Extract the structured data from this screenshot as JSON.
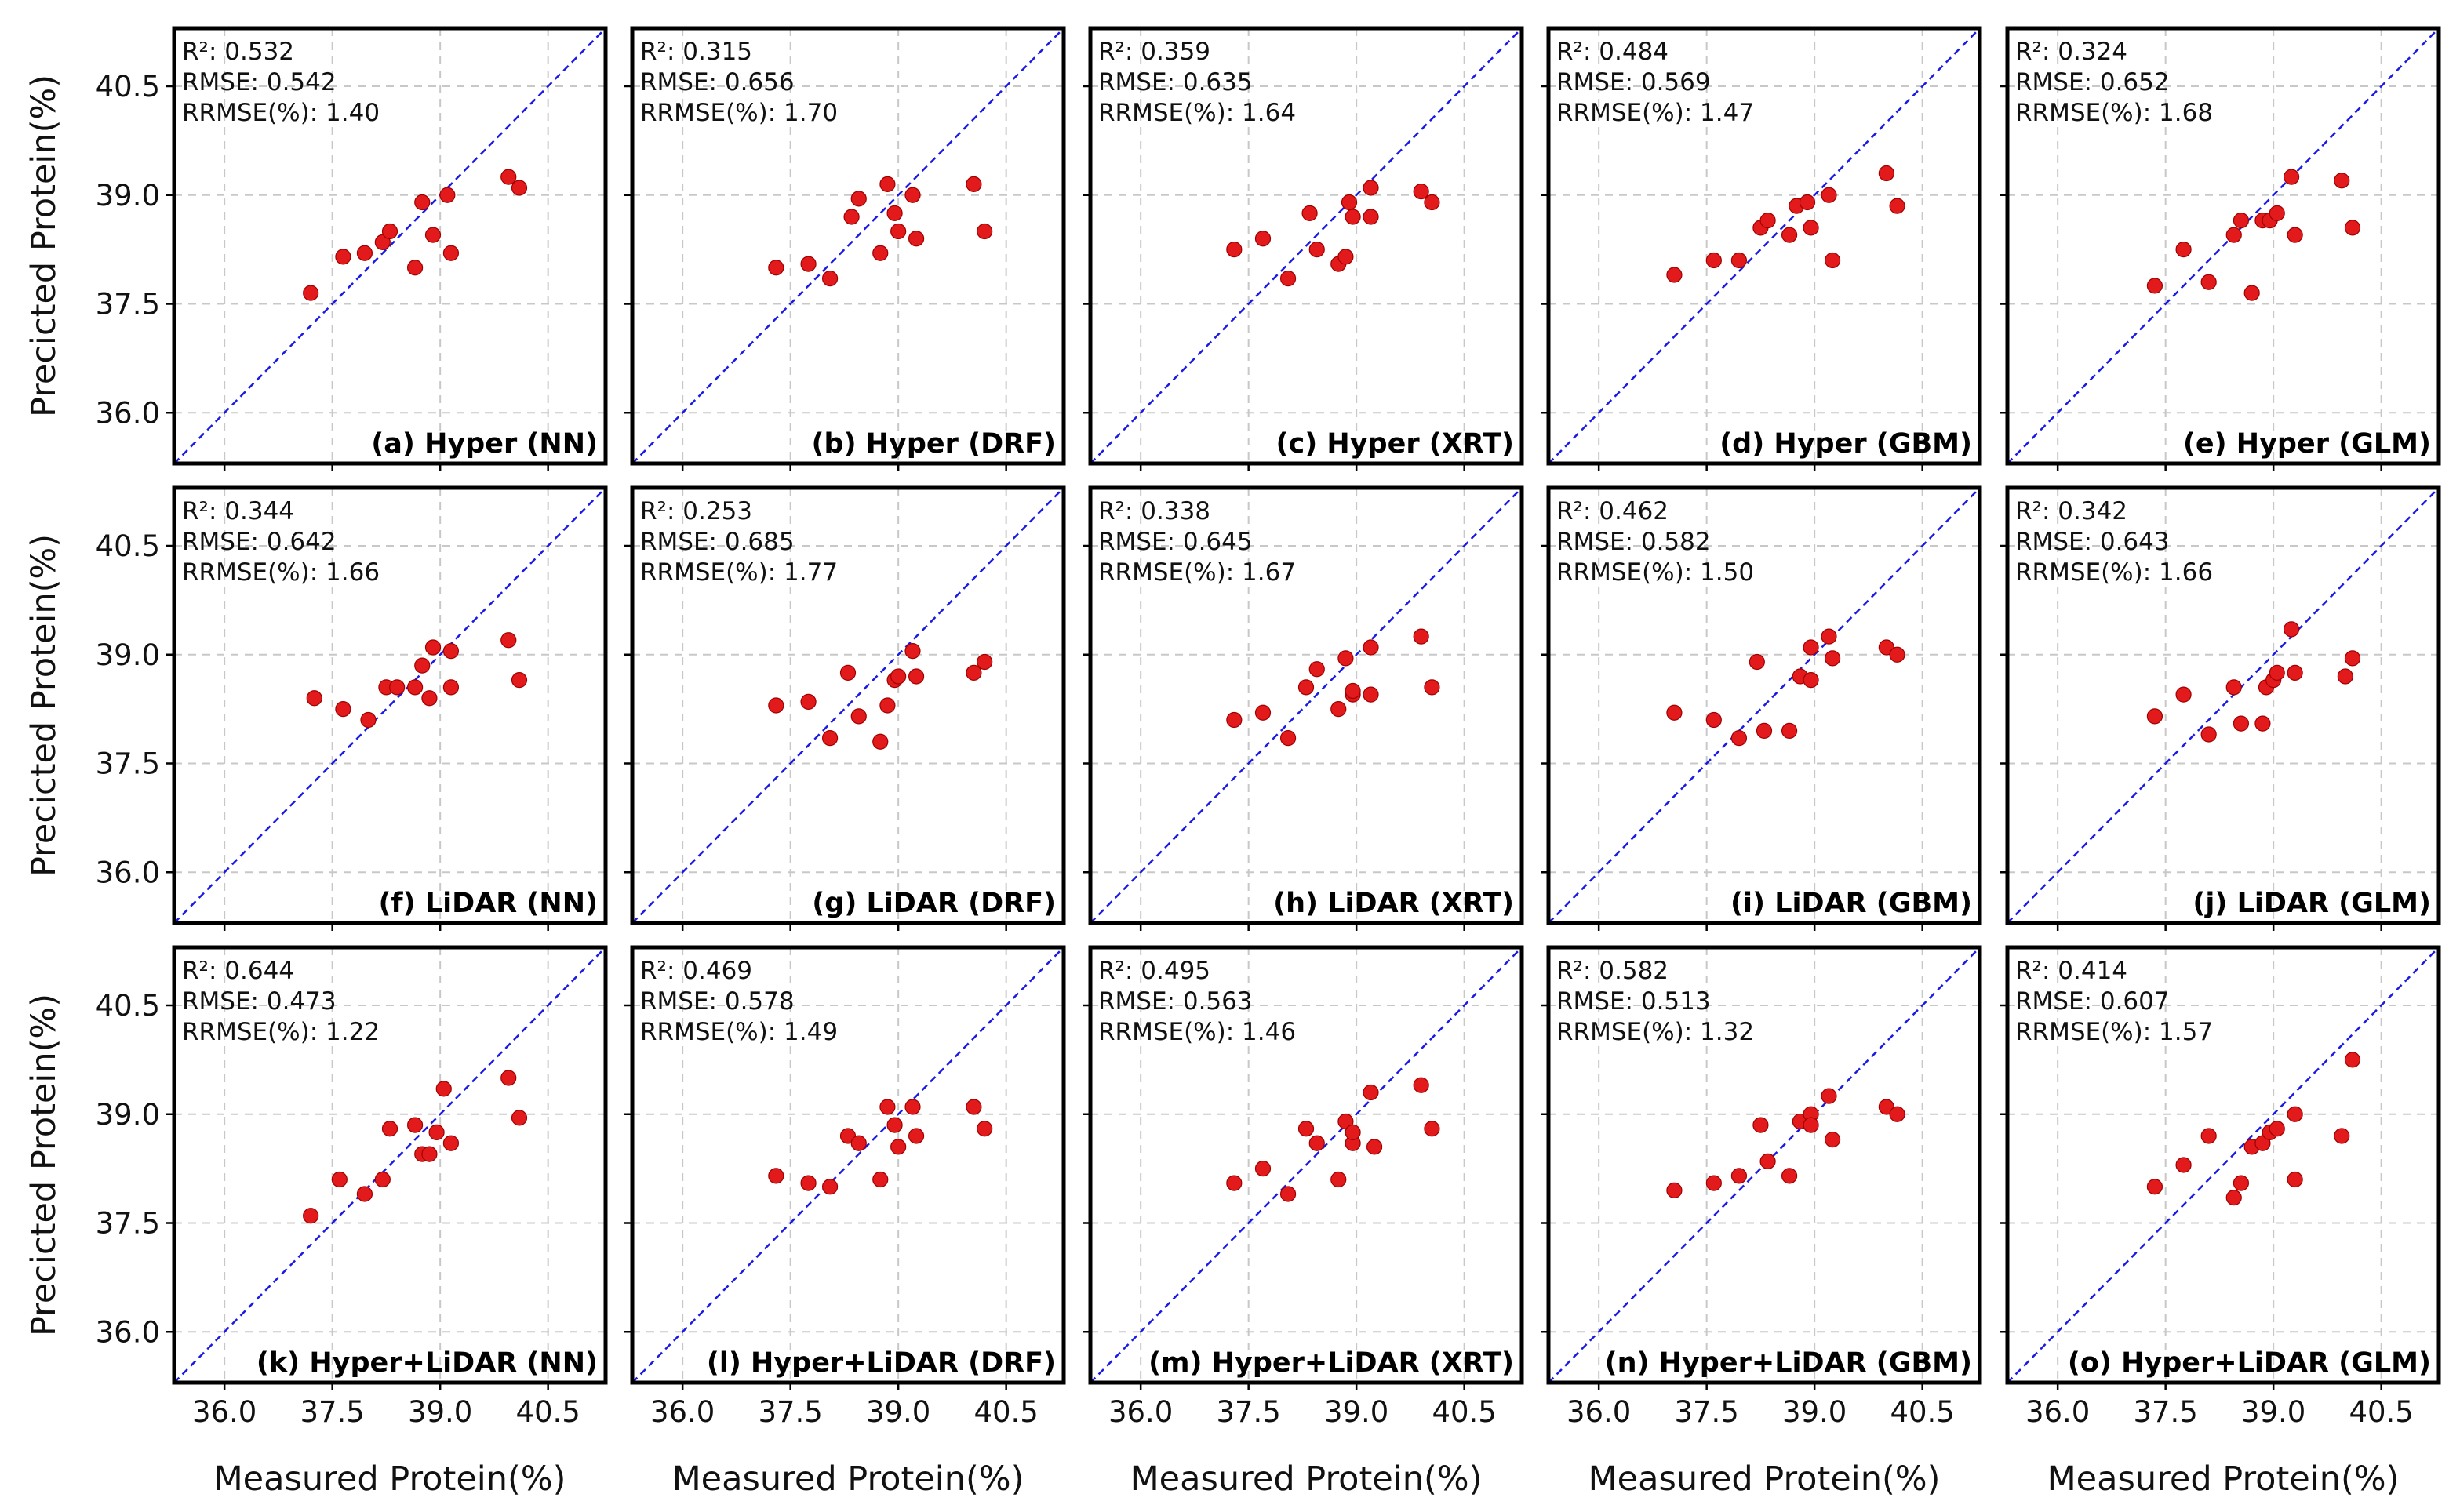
{
  "figure": {
    "xlabel": "Measured Protein(%)",
    "ylabel": "Precicted Protein(%)",
    "x_ticks": [
      "36.0",
      "37.5",
      "39.0",
      "40.5"
    ],
    "y_ticks": [
      "36.0",
      "37.5",
      "39.0",
      "40.5"
    ]
  },
  "style": {
    "point_color": "#e31a1c",
    "identity_line_color": "#1a1ae6"
  },
  "chart_data": [
    {
      "type": "scatter",
      "label": "(a) Hyper (NN)",
      "r2": "R²: 0.532",
      "rmse": "RMSE: 0.542",
      "rrmse": "RRMSE(%): 1.40",
      "xlim": [
        35.3,
        41.3
      ],
      "ylim": [
        35.3,
        41.3
      ],
      "grid": true,
      "identity_line": true,
      "points": [
        [
          37.2,
          37.65
        ],
        [
          37.65,
          38.15
        ],
        [
          37.95,
          38.2
        ],
        [
          38.2,
          38.35
        ],
        [
          38.3,
          38.5
        ],
        [
          38.65,
          38.0
        ],
        [
          38.75,
          38.9
        ],
        [
          38.9,
          38.45
        ],
        [
          39.1,
          39.0
        ],
        [
          39.15,
          38.2
        ],
        [
          39.95,
          39.25
        ],
        [
          40.1,
          39.1
        ]
      ]
    },
    {
      "type": "scatter",
      "label": "(b) Hyper (DRF)",
      "r2": "R²: 0.315",
      "rmse": "RMSE: 0.656",
      "rrmse": "RRMSE(%): 1.70",
      "xlim": [
        35.3,
        41.3
      ],
      "ylim": [
        35.3,
        41.3
      ],
      "grid": true,
      "identity_line": true,
      "points": [
        [
          37.3,
          38.0
        ],
        [
          37.75,
          38.05
        ],
        [
          38.05,
          37.85
        ],
        [
          38.35,
          38.7
        ],
        [
          38.45,
          38.95
        ],
        [
          38.75,
          38.2
        ],
        [
          38.85,
          39.15
        ],
        [
          38.95,
          38.75
        ],
        [
          39.0,
          38.5
        ],
        [
          39.2,
          39.0
        ],
        [
          39.25,
          38.4
        ],
        [
          40.05,
          39.15
        ],
        [
          40.2,
          38.5
        ]
      ]
    },
    {
      "type": "scatter",
      "label": "(c) Hyper (XRT)",
      "r2": "R²: 0.359",
      "rmse": "RMSE: 0.635",
      "rrmse": "RRMSE(%): 1.64",
      "xlim": [
        35.3,
        41.3
      ],
      "ylim": [
        35.3,
        41.3
      ],
      "grid": true,
      "identity_line": true,
      "points": [
        [
          37.3,
          38.25
        ],
        [
          37.7,
          38.4
        ],
        [
          38.05,
          37.85
        ],
        [
          38.35,
          38.75
        ],
        [
          38.45,
          38.25
        ],
        [
          38.75,
          38.05
        ],
        [
          38.85,
          38.15
        ],
        [
          38.9,
          38.9
        ],
        [
          38.95,
          38.7
        ],
        [
          39.2,
          38.7
        ],
        [
          39.2,
          39.1
        ],
        [
          39.9,
          39.05
        ],
        [
          40.05,
          38.9
        ]
      ]
    },
    {
      "type": "scatter",
      "label": "(d) Hyper (GBM)",
      "r2": "R²: 0.484",
      "rmse": "RMSE: 0.569",
      "rrmse": "RRMSE(%): 1.47",
      "xlim": [
        35.3,
        41.3
      ],
      "ylim": [
        35.3,
        41.3
      ],
      "grid": true,
      "identity_line": true,
      "points": [
        [
          37.05,
          37.9
        ],
        [
          37.6,
          38.1
        ],
        [
          37.95,
          38.1
        ],
        [
          38.25,
          38.55
        ],
        [
          38.35,
          38.65
        ],
        [
          38.65,
          38.45
        ],
        [
          38.75,
          38.85
        ],
        [
          38.9,
          38.9
        ],
        [
          38.95,
          38.55
        ],
        [
          39.2,
          39.0
        ],
        [
          39.25,
          38.1
        ],
        [
          40.0,
          39.3
        ],
        [
          40.15,
          38.85
        ]
      ]
    },
    {
      "type": "scatter",
      "label": "(e) Hyper (GLM)",
      "r2": "R²: 0.324",
      "rmse": "RMSE: 0.652",
      "rrmse": "RRMSE(%): 1.68",
      "xlim": [
        35.3,
        41.3
      ],
      "ylim": [
        35.3,
        41.3
      ],
      "grid": true,
      "identity_line": true,
      "points": [
        [
          37.35,
          37.75
        ],
        [
          37.75,
          38.25
        ],
        [
          38.1,
          37.8
        ],
        [
          38.45,
          38.45
        ],
        [
          38.55,
          38.65
        ],
        [
          38.7,
          37.65
        ],
        [
          38.85,
          38.65
        ],
        [
          38.95,
          38.65
        ],
        [
          39.05,
          38.75
        ],
        [
          39.25,
          39.25
        ],
        [
          39.3,
          38.45
        ],
        [
          39.95,
          39.2
        ],
        [
          40.1,
          38.55
        ]
      ]
    },
    {
      "type": "scatter",
      "label": "(f) LiDAR (NN)",
      "r2": "R²: 0.344",
      "rmse": "RMSE: 0.642",
      "rrmse": "RRMSE(%): 1.66",
      "xlim": [
        35.3,
        41.3
      ],
      "ylim": [
        35.3,
        41.3
      ],
      "grid": true,
      "identity_line": true,
      "points": [
        [
          37.25,
          38.4
        ],
        [
          37.65,
          38.25
        ],
        [
          38.0,
          38.1
        ],
        [
          38.25,
          38.55
        ],
        [
          38.4,
          38.55
        ],
        [
          38.65,
          38.55
        ],
        [
          38.75,
          38.85
        ],
        [
          38.85,
          38.4
        ],
        [
          38.9,
          39.1
        ],
        [
          39.15,
          39.05
        ],
        [
          39.15,
          38.55
        ],
        [
          39.95,
          39.2
        ],
        [
          40.1,
          38.65
        ]
      ]
    },
    {
      "type": "scatter",
      "label": "(g) LiDAR (DRF)",
      "r2": "R²: 0.253",
      "rmse": "RMSE: 0.685",
      "rrmse": "RRMSE(%): 1.77",
      "xlim": [
        35.3,
        41.3
      ],
      "ylim": [
        35.3,
        41.3
      ],
      "grid": true,
      "identity_line": true,
      "points": [
        [
          37.3,
          38.3
        ],
        [
          37.75,
          38.35
        ],
        [
          38.05,
          37.85
        ],
        [
          38.3,
          38.75
        ],
        [
          38.45,
          38.15
        ],
        [
          38.75,
          37.8
        ],
        [
          38.85,
          38.3
        ],
        [
          38.95,
          38.65
        ],
        [
          39.0,
          38.7
        ],
        [
          39.2,
          39.05
        ],
        [
          39.25,
          38.7
        ],
        [
          40.05,
          38.75
        ],
        [
          40.2,
          38.9
        ]
      ]
    },
    {
      "type": "scatter",
      "label": "(h) LiDAR (XRT)",
      "r2": "R²: 0.338",
      "rmse": "RMSE: 0.645",
      "rrmse": "RRMSE(%): 1.67",
      "xlim": [
        35.3,
        41.3
      ],
      "ylim": [
        35.3,
        41.3
      ],
      "grid": true,
      "identity_line": true,
      "points": [
        [
          37.3,
          38.1
        ],
        [
          37.7,
          38.2
        ],
        [
          38.05,
          37.85
        ],
        [
          38.3,
          38.55
        ],
        [
          38.45,
          38.8
        ],
        [
          38.75,
          38.25
        ],
        [
          38.85,
          38.95
        ],
        [
          38.95,
          38.45
        ],
        [
          38.95,
          38.5
        ],
        [
          39.2,
          39.1
        ],
        [
          39.2,
          38.45
        ],
        [
          39.9,
          39.25
        ],
        [
          40.05,
          38.55
        ]
      ]
    },
    {
      "type": "scatter",
      "label": "(i) LiDAR (GBM)",
      "r2": "R²: 0.462",
      "rmse": "RMSE: 0.582",
      "rrmse": "RRMSE(%): 1.50",
      "xlim": [
        35.3,
        41.3
      ],
      "ylim": [
        35.3,
        41.3
      ],
      "grid": true,
      "identity_line": true,
      "points": [
        [
          37.05,
          38.2
        ],
        [
          37.6,
          38.1
        ],
        [
          37.95,
          37.85
        ],
        [
          38.2,
          38.9
        ],
        [
          38.3,
          37.95
        ],
        [
          38.65,
          37.95
        ],
        [
          38.8,
          38.7
        ],
        [
          38.95,
          39.1
        ],
        [
          38.95,
          38.65
        ],
        [
          39.2,
          39.25
        ],
        [
          39.25,
          38.95
        ],
        [
          40.0,
          39.1
        ],
        [
          40.15,
          39.0
        ]
      ]
    },
    {
      "type": "scatter",
      "label": "(j) LiDAR (GLM)",
      "r2": "R²: 0.342",
      "rmse": "RMSE: 0.643",
      "rrmse": "RRMSE(%): 1.66",
      "xlim": [
        35.3,
        41.3
      ],
      "ylim": [
        35.3,
        41.3
      ],
      "grid": true,
      "identity_line": true,
      "points": [
        [
          37.35,
          38.15
        ],
        [
          37.75,
          38.45
        ],
        [
          38.1,
          37.9
        ],
        [
          38.45,
          38.55
        ],
        [
          38.55,
          38.05
        ],
        [
          38.85,
          38.05
        ],
        [
          38.9,
          38.55
        ],
        [
          39.0,
          38.65
        ],
        [
          39.05,
          38.75
        ],
        [
          39.25,
          39.35
        ],
        [
          39.3,
          38.75
        ],
        [
          40.0,
          38.7
        ],
        [
          40.1,
          38.95
        ]
      ]
    },
    {
      "type": "scatter",
      "label": "(k) Hyper+LiDAR (NN)",
      "r2": "R²: 0.644",
      "rmse": "RMSE: 0.473",
      "rrmse": "RRMSE(%): 1.22",
      "xlim": [
        35.3,
        41.3
      ],
      "ylim": [
        35.3,
        41.3
      ],
      "grid": true,
      "identity_line": true,
      "points": [
        [
          37.2,
          37.6
        ],
        [
          37.6,
          38.1
        ],
        [
          37.95,
          37.9
        ],
        [
          38.2,
          38.1
        ],
        [
          38.3,
          38.8
        ],
        [
          38.65,
          38.85
        ],
        [
          38.75,
          38.45
        ],
        [
          38.85,
          38.45
        ],
        [
          38.95,
          38.75
        ],
        [
          39.05,
          39.35
        ],
        [
          39.15,
          38.6
        ],
        [
          39.95,
          39.5
        ],
        [
          40.1,
          38.95
        ]
      ]
    },
    {
      "type": "scatter",
      "label": "(l) Hyper+LiDAR (DRF)",
      "r2": "R²: 0.469",
      "rmse": "RMSE: 0.578",
      "rrmse": "RRMSE(%): 1.49",
      "xlim": [
        35.3,
        41.3
      ],
      "ylim": [
        35.3,
        41.3
      ],
      "grid": true,
      "identity_line": true,
      "points": [
        [
          37.3,
          38.15
        ],
        [
          37.75,
          38.05
        ],
        [
          38.05,
          38.0
        ],
        [
          38.3,
          38.7
        ],
        [
          38.45,
          38.6
        ],
        [
          38.75,
          38.1
        ],
        [
          38.85,
          39.1
        ],
        [
          38.95,
          38.85
        ],
        [
          39.0,
          38.55
        ],
        [
          39.2,
          39.1
        ],
        [
          39.25,
          38.7
        ],
        [
          40.05,
          39.1
        ],
        [
          40.2,
          38.8
        ]
      ]
    },
    {
      "type": "scatter",
      "label": "(m) Hyper+LiDAR (XRT)",
      "r2": "R²: 0.495",
      "rmse": "RMSE: 0.563",
      "rrmse": "RRMSE(%): 1.46",
      "xlim": [
        35.3,
        41.3
      ],
      "ylim": [
        35.3,
        41.3
      ],
      "grid": true,
      "identity_line": true,
      "points": [
        [
          37.3,
          38.05
        ],
        [
          37.7,
          38.25
        ],
        [
          38.05,
          37.9
        ],
        [
          38.3,
          38.8
        ],
        [
          38.45,
          38.6
        ],
        [
          38.75,
          38.1
        ],
        [
          38.85,
          38.9
        ],
        [
          38.95,
          38.6
        ],
        [
          38.95,
          38.75
        ],
        [
          39.2,
          39.3
        ],
        [
          39.25,
          38.55
        ],
        [
          39.9,
          39.4
        ],
        [
          40.05,
          38.8
        ]
      ]
    },
    {
      "type": "scatter",
      "label": "(n) Hyper+LiDAR (GBM)",
      "r2": "R²: 0.582",
      "rmse": "RMSE: 0.513",
      "rrmse": "RRMSE(%): 1.32",
      "xlim": [
        35.3,
        41.3
      ],
      "ylim": [
        35.3,
        41.3
      ],
      "grid": true,
      "identity_line": true,
      "points": [
        [
          37.05,
          37.95
        ],
        [
          37.6,
          38.05
        ],
        [
          37.95,
          38.15
        ],
        [
          38.25,
          38.85
        ],
        [
          38.35,
          38.35
        ],
        [
          38.65,
          38.15
        ],
        [
          38.8,
          38.9
        ],
        [
          38.95,
          39.0
        ],
        [
          38.95,
          38.85
        ],
        [
          39.2,
          39.25
        ],
        [
          39.25,
          38.65
        ],
        [
          40.0,
          39.1
        ],
        [
          40.15,
          39.0
        ]
      ]
    },
    {
      "type": "scatter",
      "label": "(o) Hyper+LiDAR (GLM)",
      "r2": "R²: 0.414",
      "rmse": "RMSE: 0.607",
      "rrmse": "RRMSE(%): 1.57",
      "xlim": [
        35.3,
        41.3
      ],
      "ylim": [
        35.3,
        41.3
      ],
      "grid": true,
      "identity_line": true,
      "points": [
        [
          37.35,
          38.0
        ],
        [
          37.75,
          38.3
        ],
        [
          38.1,
          38.7
        ],
        [
          38.45,
          37.85
        ],
        [
          38.55,
          38.05
        ],
        [
          38.7,
          38.55
        ],
        [
          38.85,
          38.6
        ],
        [
          38.95,
          38.75
        ],
        [
          39.05,
          38.8
        ],
        [
          39.3,
          39.0
        ],
        [
          39.3,
          38.1
        ],
        [
          39.95,
          38.7
        ],
        [
          40.1,
          39.75
        ]
      ]
    }
  ]
}
